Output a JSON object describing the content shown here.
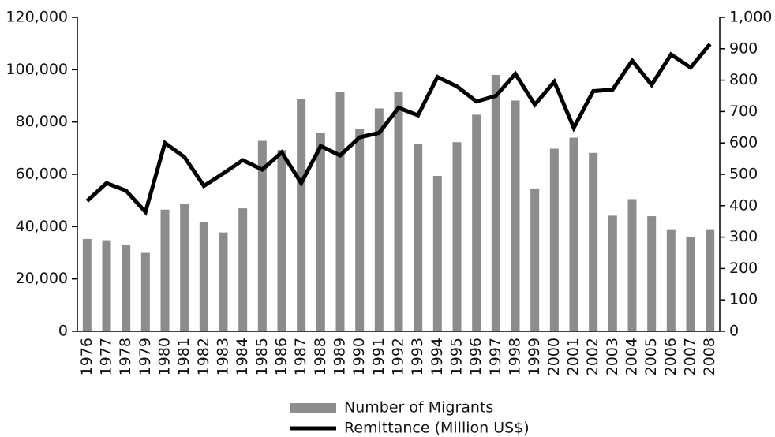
{
  "chart_data": {
    "type": "bar_line",
    "categories": [
      "1976",
      "1977",
      "1978",
      "1979",
      "1980",
      "1981",
      "1982",
      "1983",
      "1984",
      "1985",
      "1986",
      "1987",
      "1988",
      "1989",
      "1990",
      "1991",
      "1992",
      "1993",
      "1994",
      "1995",
      "1996",
      "1997",
      "1998",
      "1999",
      "2000",
      "2001",
      "2002",
      "2003",
      "2004",
      "2005",
      "2006",
      "2007",
      "2008"
    ],
    "series": [
      {
        "name": "Number of Migrants",
        "type": "bar",
        "color": "#8c8c8c",
        "values": [
          35300,
          34800,
          33000,
          30000,
          46500,
          48800,
          41800,
          37800,
          47000,
          72800,
          69300,
          88800,
          75800,
          91600,
          77500,
          85200,
          91600,
          71700,
          59400,
          72300,
          82800,
          98000,
          88200,
          54600,
          69800,
          74000,
          68200,
          44200,
          50500,
          44000,
          39000,
          36000,
          39000
        ]
      },
      {
        "name": "Remittance (Million US$)",
        "type": "line",
        "axis": "y2",
        "color": "#000000",
        "values": [
          415,
          472,
          448,
          380,
          600,
          555,
          463,
          503,
          545,
          515,
          570,
          472,
          590,
          560,
          618,
          632,
          712,
          688,
          810,
          780,
          732,
          750,
          820,
          722,
          795,
          648,
          765,
          770,
          862,
          785,
          882,
          840,
          915
        ]
      }
    ],
    "ylim": [
      0,
      120000
    ],
    "yticks": [
      0,
      {
        "value": 20000,
        "label": "20,000"
      },
      {
        "value": 40000,
        "label": "40,000"
      },
      {
        "value": 60000,
        "label": "60,000"
      },
      {
        "value": 80000,
        "label": "80,000"
      },
      {
        "value": 100000,
        "label": "100,000"
      },
      {
        "value": 120000,
        "label": "120,000"
      }
    ],
    "y2lim": [
      0,
      1000
    ],
    "y2ticks": [
      0,
      100,
      200,
      300,
      400,
      500,
      600,
      700,
      800,
      900,
      {
        "value": 1000,
        "label": "1,000"
      }
    ],
    "legend": "bottom"
  }
}
